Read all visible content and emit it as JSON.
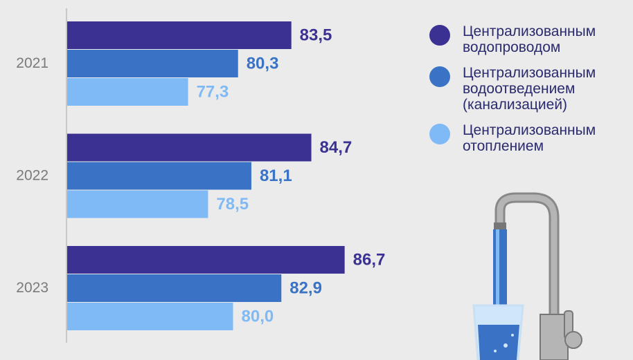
{
  "chart_data": {
    "type": "hbar",
    "categories": [
      "2021",
      "2022",
      "2023"
    ],
    "series": [
      {
        "name": "Централизованным водопроводом",
        "color": "#3a3192",
        "values": [
          83.5,
          84.7,
          86.7
        ],
        "value_labels": [
          "83,5",
          "84,7",
          "86,7"
        ]
      },
      {
        "name": "Централизованным водоотведением (канализацией)",
        "color": "#3a73c5",
        "values": [
          80.3,
          81.1,
          82.9
        ],
        "value_labels": [
          "80,3",
          "81,1",
          "82,9"
        ]
      },
      {
        "name": "Централизованным отоплением",
        "color": "#7fbaf6",
        "values": [
          77.3,
          78.5,
          80.0
        ],
        "value_labels": [
          "77,3",
          "78,5",
          "80,0"
        ]
      }
    ],
    "xlim": [
      70,
      90
    ]
  }
}
